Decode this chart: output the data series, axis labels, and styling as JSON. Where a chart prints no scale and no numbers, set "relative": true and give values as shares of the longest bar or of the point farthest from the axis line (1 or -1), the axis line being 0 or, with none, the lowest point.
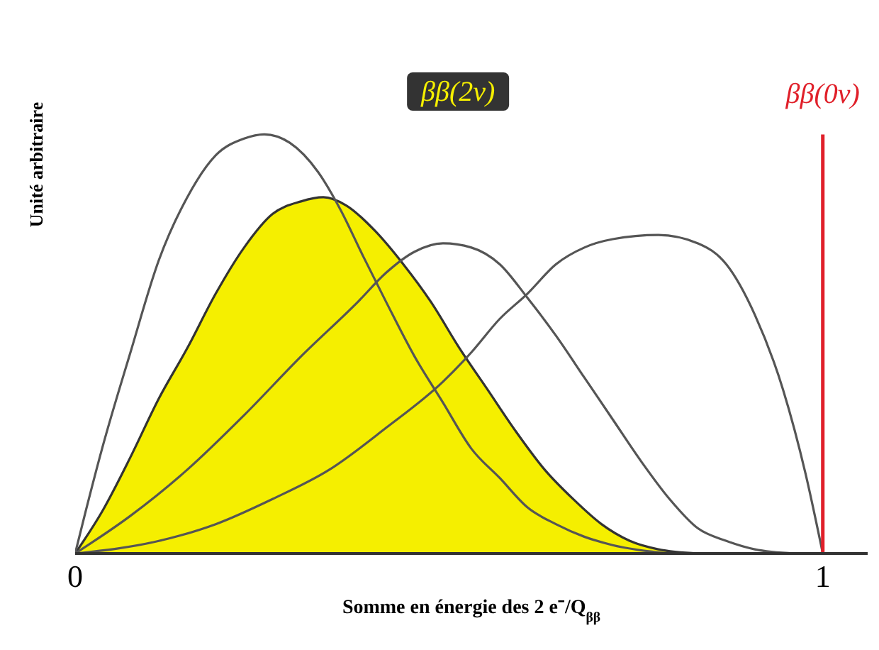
{
  "chart_data": {
    "type": "line",
    "relative": true,
    "xlabel": "Somme en énergie des 2 e⁻/Q$_{ββ}$",
    "ylabel": "Unité arbitraire",
    "xlim": [
      0,
      1.06
    ],
    "xticks": [
      0,
      1
    ],
    "grid": false,
    "legend": false,
    "marker": "none",
    "series": [
      {
        "color": "#555555",
        "x": [
          0,
          0.014,
          0.036,
          0.074,
          0.112,
          0.15,
          0.188,
          0.226,
          0.253,
          0.287,
          0.325,
          0.355,
          0.385,
          0.416,
          0.454,
          0.492,
          0.53,
          0.568,
          0.605,
          0.643,
          0.681,
          0.719,
          0.795
        ],
        "values": [
          0,
          0.1,
          0.25,
          0.48,
          0.7,
          0.85,
          0.95,
          0.99,
          1,
          0.98,
          0.91,
          0.82,
          0.71,
          0.6,
          0.47,
          0.36,
          0.25,
          0.18,
          0.11,
          0.07,
          0.04,
          0.02,
          0
        ]
      },
      {
        "type": "area",
        "name": "ββ(2ν)",
        "color": "#f5ef00",
        "x": [
          0,
          0.036,
          0.074,
          0.112,
          0.15,
          0.188,
          0.226,
          0.264,
          0.302,
          0.332,
          0.363,
          0.401,
          0.439,
          0.476,
          0.514,
          0.552,
          0.59,
          0.628,
          0.666,
          0.704,
          0.742,
          0.78,
          0.833
        ],
        "values": [
          0,
          0.1,
          0.23,
          0.37,
          0.49,
          0.62,
          0.73,
          0.81,
          0.84,
          0.85,
          0.83,
          0.77,
          0.69,
          0.6,
          0.49,
          0.39,
          0.29,
          0.2,
          0.13,
          0.07,
          0.03,
          0.01,
          0
        ]
      },
      {
        "color": "#555555",
        "x": [
          0,
          0.074,
          0.15,
          0.226,
          0.302,
          0.378,
          0.416,
          0.454,
          0.492,
          0.53,
          0.568,
          0.605,
          0.643,
          0.681,
          0.719,
          0.757,
          0.795,
          0.833,
          0.871,
          0.909,
          0.962
        ],
        "values": [
          0,
          0.09,
          0.2,
          0.33,
          0.47,
          0.6,
          0.67,
          0.72,
          0.74,
          0.73,
          0.69,
          0.61,
          0.52,
          0.42,
          0.32,
          0.22,
          0.13,
          0.06,
          0.03,
          0.01,
          0
        ]
      },
      {
        "color": "#555555",
        "x": [
          0,
          0.112,
          0.188,
          0.264,
          0.34,
          0.416,
          0.492,
          0.53,
          0.568,
          0.605,
          0.643,
          0.681,
          0.719,
          0.78,
          0.833,
          0.871,
          0.909,
          0.947,
          0.977,
          1
        ],
        "values": [
          0,
          0.03,
          0.07,
          0.13,
          0.2,
          0.3,
          0.41,
          0.48,
          0.56,
          0.62,
          0.69,
          0.73,
          0.75,
          0.76,
          0.74,
          0.69,
          0.57,
          0.39,
          0.19,
          0
        ]
      }
    ],
    "ref_lines": [
      {
        "axis": "x",
        "value": 1,
        "label": "ββ(0ν)",
        "color": "#e0202a"
      }
    ]
  }
}
